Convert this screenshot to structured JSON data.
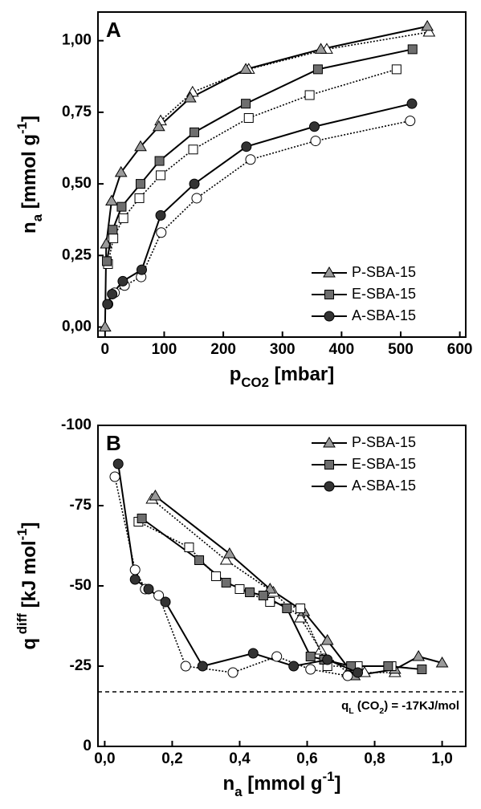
{
  "chart_data": [
    {
      "type": "scatter-line",
      "title": "A",
      "xlabel_parts": [
        {
          "text": "p"
        },
        {
          "text": "CO2",
          "shift": "sub"
        },
        {
          "text": "  [mbar]"
        }
      ],
      "ylabel_parts": [
        {
          "text": "n"
        },
        {
          "text": "a",
          "shift": "sub"
        },
        {
          "text": " [mmol g"
        },
        {
          "text": "-1",
          "shift": "sup"
        },
        {
          "text": "]"
        }
      ],
      "xlim": [
        -12,
        610
      ],
      "ylim": [
        -0.035,
        1.1
      ],
      "xticks": [
        0,
        100,
        200,
        300,
        400,
        500,
        600
      ],
      "yticks": [
        {
          "value": 0,
          "label": "0,00"
        },
        {
          "value": 0.25,
          "label": "0,25"
        },
        {
          "value": 0.5,
          "label": "0,50"
        },
        {
          "value": 0.75,
          "label": "0,75"
        },
        {
          "value": 1,
          "label": "1,00"
        }
      ],
      "legend": "bottom-right",
      "series": [
        {
          "name": "P-SBA-15",
          "marker": "triangle",
          "color": "#9a9a9a",
          "x": [
            0,
            2,
            11,
            27,
            60,
            91,
            144,
            238,
            365,
            545
          ],
          "values": [
            0,
            0.29,
            0.44,
            0.54,
            0.63,
            0.7,
            0.8,
            0.9,
            0.97,
            1.05
          ],
          "open": {
            "x": [
              94,
              148,
              243,
              375,
              548
            ],
            "values": [
              0.72,
              0.82,
              0.9,
              0.97,
              1.03
            ]
          }
        },
        {
          "name": "E-SBA-15",
          "marker": "square",
          "color": "#6e6e6e",
          "x": [
            3,
            13,
            28,
            60,
            92,
            151,
            238,
            360,
            520
          ],
          "values": [
            0.23,
            0.34,
            0.42,
            0.5,
            0.58,
            0.68,
            0.78,
            0.9,
            0.97
          ],
          "open": {
            "x": [
              5,
              14,
              31,
              58,
              94,
              149,
              243,
              346,
              493
            ],
            "values": [
              0.22,
              0.31,
              0.38,
              0.45,
              0.53,
              0.62,
              0.73,
              0.81,
              0.9
            ]
          }
        },
        {
          "name": "A-SBA-15",
          "marker": "circle",
          "color": "#333333",
          "x": [
            4,
            12,
            30,
            62,
            94,
            151,
            239,
            354,
            519
          ],
          "values": [
            0.08,
            0.115,
            0.16,
            0.2,
            0.39,
            0.5,
            0.63,
            0.7,
            0.78
          ],
          "open": {
            "x": [
              5,
              16,
              33,
              61,
              95,
              155,
              246,
              356,
              516
            ],
            "values": [
              0.08,
              0.12,
              0.145,
              0.175,
              0.33,
              0.45,
              0.585,
              0.65,
              0.72
            ]
          }
        }
      ]
    },
    {
      "type": "scatter-line",
      "title": "B",
      "xlabel_parts": [
        {
          "text": "n"
        },
        {
          "text": "a",
          "shift": "sub"
        },
        {
          "text": " [mmol g"
        },
        {
          "text": "-1",
          "shift": "sup"
        },
        {
          "text": "]"
        }
      ],
      "ylabel_parts": [
        {
          "text": "q"
        },
        {
          "text": " diff",
          "shift": "sup"
        },
        {
          "text": " [kJ mol"
        },
        {
          "text": "-1",
          "shift": "sup"
        },
        {
          "text": "]"
        }
      ],
      "xlim": [
        -0.02,
        1.07
      ],
      "ylim": [
        0,
        -100
      ],
      "xticks": [
        {
          "value": 0,
          "label": "0,0"
        },
        {
          "value": 0.2,
          "label": "0,2"
        },
        {
          "value": 0.4,
          "label": "0,4"
        },
        {
          "value": 0.6,
          "label": "0,6"
        },
        {
          "value": 0.8,
          "label": "0,8"
        },
        {
          "value": 1,
          "label": "1,0"
        }
      ],
      "yticks": [
        0,
        -25,
        -50,
        -75,
        -100
      ],
      "legend": "top-right",
      "hline": -17,
      "annotation_parts": [
        {
          "text": "q"
        },
        {
          "text": "L",
          "shift": "sub"
        },
        {
          "text": " (CO"
        },
        {
          "text": "2",
          "shift": "sub"
        },
        {
          "text": ") = -17KJ/mol"
        }
      ],
      "series": [
        {
          "name": "P-SBA-15",
          "marker": "triangle",
          "color": "#9a9a9a",
          "x": [
            0.15,
            0.37,
            0.49,
            0.59,
            0.66,
            0.74,
            0.86,
            0.93,
            1.0
          ],
          "values": [
            -78,
            -60,
            -49,
            -42,
            -33,
            -22,
            -24,
            -28,
            -26
          ],
          "open": {
            "x": [
              0.14,
              0.36,
              0.5,
              0.58,
              0.64,
              0.72,
              0.77,
              0.86
            ],
            "values": [
              -77,
              -58,
              -48,
              -40,
              -30,
              -23,
              -23,
              -23
            ]
          }
        },
        {
          "name": "E-SBA-15",
          "marker": "square",
          "color": "#6e6e6e",
          "x": [
            0.11,
            0.28,
            0.36,
            0.43,
            0.47,
            0.54,
            0.61,
            0.65,
            0.73,
            0.84,
            0.94
          ],
          "values": [
            -71,
            -58,
            -51,
            -48,
            -47,
            -43,
            -28,
            -27,
            -25,
            -25,
            -24
          ],
          "open": {
            "x": [
              0.1,
              0.25,
              0.33,
              0.4,
              0.49,
              0.58,
              0.66,
              0.75,
              0.85
            ],
            "values": [
              -70,
              -62,
              -53,
              -49,
              -45,
              -43,
              -25,
              -25,
              -25
            ]
          }
        },
        {
          "name": "A-SBA-15",
          "marker": "circle",
          "color": "#333333",
          "x": [
            0.04,
            0.09,
            0.13,
            0.18,
            0.29,
            0.44,
            0.56,
            0.66,
            0.75
          ],
          "values": [
            -88,
            -52,
            -49,
            -45,
            -25,
            -29,
            -25,
            -27,
            -23
          ],
          "open": {
            "x": [
              0.03,
              0.09,
              0.12,
              0.16,
              0.24,
              0.38,
              0.51,
              0.61,
              0.72
            ],
            "values": [
              -84,
              -55,
              -49,
              -47,
              -25,
              -23,
              -28,
              -24,
              -22
            ]
          }
        }
      ]
    }
  ]
}
